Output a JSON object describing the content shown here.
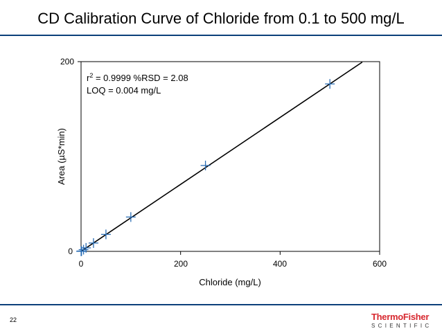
{
  "slide": {
    "title": "CD Calibration Curve of Chloride from 0.1 to 500 mg/L",
    "page_number": "22",
    "logo_top": "ThermoFisher",
    "logo_bottom": "SCIENTIFIC"
  },
  "chart_data": {
    "type": "scatter",
    "xlabel": "Chloride (mg/L)",
    "ylabel": "Area (µS*min)",
    "xlim": [
      0,
      600
    ],
    "ylim": [
      0,
      200
    ],
    "xticks": [
      0,
      200,
      400,
      600
    ],
    "yticks": [
      0,
      200
    ],
    "grid": false,
    "annotations": {
      "r2_base": "r",
      "r2_sup": "2",
      "r2_rest": " = 0.9999  %RSD = 2.08",
      "loq": "LOQ = 0.004 mg/L"
    },
    "series": [
      {
        "marker": "plus",
        "color": "#2a6db4",
        "points": [
          {
            "x": 0.1,
            "y": 0.04
          },
          {
            "x": 1,
            "y": 0.35
          },
          {
            "x": 5,
            "y": 1.8
          },
          {
            "x": 10,
            "y": 3.7
          },
          {
            "x": 25,
            "y": 8.8
          },
          {
            "x": 50,
            "y": 17.9
          },
          {
            "x": 100,
            "y": 36.2
          },
          {
            "x": 250,
            "y": 90.5
          },
          {
            "x": 500,
            "y": 176.5
          }
        ]
      }
    ],
    "fit": {
      "slope": 0.353,
      "intercept": 0.0,
      "x_range": [
        0,
        565
      ]
    }
  }
}
